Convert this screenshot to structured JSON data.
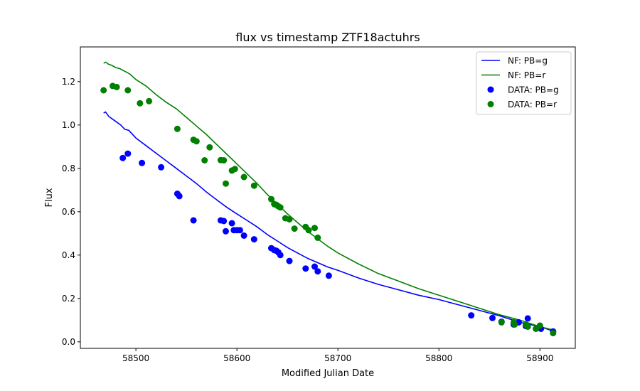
{
  "chart_data": {
    "type": "scatter",
    "title": "flux vs timestamp ZTF18actuhrs",
    "xlabel": "Modified Julian Date",
    "ylabel": "Flux",
    "xlim": [
      58445,
      58935
    ],
    "ylim": [
      -0.03,
      1.36
    ],
    "xticks": [
      58500,
      58600,
      58700,
      58800,
      58900
    ],
    "yticks": [
      0.0,
      0.2,
      0.4,
      0.6,
      0.8,
      1.0,
      1.2
    ],
    "grid": false,
    "legend_position": "top-right",
    "series": [
      {
        "name": "NF: PB=g",
        "kind": "line",
        "color": "#0000ff",
        "x": [
          58468,
          58470,
          58473,
          58476,
          58479,
          58482,
          58485,
          58489,
          58493,
          58500,
          58510,
          58520,
          58530,
          58540,
          58550,
          58560,
          58570,
          58580,
          58590,
          58600,
          58610,
          58620,
          58630,
          58640,
          58650,
          58660,
          58670,
          58680,
          58690,
          58700,
          58720,
          58740,
          58760,
          58780,
          58800,
          58820,
          58840,
          58860,
          58880,
          58900,
          58913
        ],
        "y": [
          1.055,
          1.06,
          1.04,
          1.03,
          1.02,
          1.01,
          1.0,
          0.98,
          0.975,
          0.94,
          0.905,
          0.87,
          0.835,
          0.8,
          0.765,
          0.73,
          0.69,
          0.655,
          0.62,
          0.59,
          0.56,
          0.53,
          0.495,
          0.465,
          0.435,
          0.41,
          0.385,
          0.365,
          0.345,
          0.33,
          0.295,
          0.265,
          0.24,
          0.215,
          0.195,
          0.17,
          0.145,
          0.12,
          0.09,
          0.07,
          0.05
        ]
      },
      {
        "name": "NF: PB=r",
        "kind": "line",
        "color": "#008000",
        "x": [
          58468,
          58470,
          58473,
          58476,
          58480,
          58484,
          58488,
          58494,
          58500,
          58510,
          58520,
          58530,
          58540,
          58550,
          58560,
          58570,
          58580,
          58590,
          58600,
          58610,
          58620,
          58630,
          58640,
          58650,
          58660,
          58670,
          58680,
          58690,
          58700,
          58720,
          58740,
          58760,
          58780,
          58800,
          58820,
          58840,
          58860,
          58880,
          58900,
          58913
        ],
        "y": [
          1.285,
          1.29,
          1.28,
          1.275,
          1.265,
          1.26,
          1.25,
          1.235,
          1.21,
          1.18,
          1.14,
          1.105,
          1.075,
          1.035,
          0.995,
          0.955,
          0.91,
          0.865,
          0.82,
          0.775,
          0.73,
          0.68,
          0.635,
          0.59,
          0.55,
          0.51,
          0.475,
          0.44,
          0.41,
          0.36,
          0.315,
          0.28,
          0.245,
          0.215,
          0.185,
          0.155,
          0.125,
          0.1,
          0.07,
          0.055
        ]
      },
      {
        "name": "DATA: PB=g",
        "kind": "scatter",
        "color": "#0000ff",
        "x": [
          58487,
          58492,
          58506,
          58525,
          58541,
          58543,
          58557,
          58584,
          58587,
          58589,
          58595,
          58597,
          58600,
          58603,
          58607,
          58617,
          58634,
          58637,
          58639,
          58641,
          58643,
          58652,
          58668,
          58677,
          58680,
          58691,
          58832,
          58853,
          58862,
          58874,
          58875,
          58879,
          58886,
          58888,
          58901,
          58913
        ],
        "y": [
          0.848,
          0.868,
          0.825,
          0.805,
          0.683,
          0.672,
          0.56,
          0.56,
          0.557,
          0.51,
          0.547,
          0.515,
          0.515,
          0.515,
          0.49,
          0.473,
          0.432,
          0.423,
          0.42,
          0.413,
          0.4,
          0.373,
          0.338,
          0.347,
          0.325,
          0.305,
          0.122,
          0.11,
          0.093,
          0.08,
          0.085,
          0.09,
          0.073,
          0.108,
          0.06,
          0.048
        ]
      },
      {
        "name": "DATA: PB=r",
        "kind": "scatter",
        "color": "#008000",
        "x": [
          58468,
          58477,
          58481,
          58492,
          58504,
          58513,
          58541,
          58557,
          58560,
          58568,
          58573,
          58584,
          58587,
          58589,
          58595,
          58598,
          58607,
          58617,
          58634,
          58637,
          58639,
          58641,
          58643,
          58648,
          58652,
          58657,
          58668,
          58671,
          58677,
          58680,
          58862,
          58874,
          58875,
          58886,
          58888,
          58896,
          58900,
          58913
        ],
        "y": [
          1.16,
          1.18,
          1.175,
          1.16,
          1.1,
          1.11,
          0.982,
          0.932,
          0.925,
          0.837,
          0.897,
          0.838,
          0.837,
          0.73,
          0.79,
          0.797,
          0.76,
          0.72,
          0.658,
          0.635,
          0.632,
          0.625,
          0.62,
          0.57,
          0.565,
          0.522,
          0.53,
          0.515,
          0.525,
          0.48,
          0.09,
          0.09,
          0.08,
          0.08,
          0.07,
          0.06,
          0.075,
          0.04
        ]
      }
    ]
  }
}
